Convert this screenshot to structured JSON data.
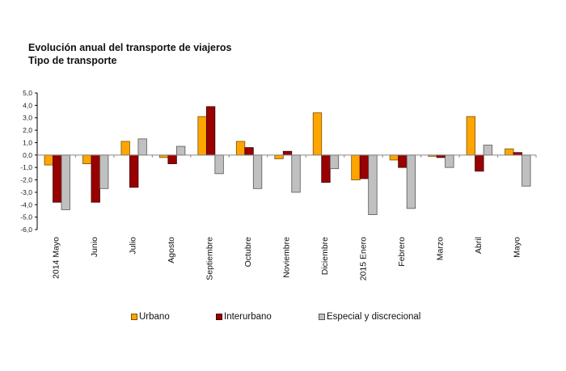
{
  "chart_data": {
    "type": "bar",
    "title": "Evolución anual del transporte de viajeros",
    "subtitle": "Tipo de transporte",
    "xlabel": "",
    "ylabel": "",
    "ylim": [
      -6.0,
      5.0
    ],
    "yticks": [
      "5,0",
      "4,0",
      "3,0",
      "2,0",
      "1,0",
      "0,0",
      "-1,0",
      "-2,0",
      "-3,0",
      "-4,0",
      "-5,0",
      "-6,0"
    ],
    "ytick_values": [
      5,
      4,
      3,
      2,
      1,
      0,
      -1,
      -2,
      -3,
      -4,
      -5,
      -6
    ],
    "grid": false,
    "legend_position": "bottom",
    "categories": [
      "2014 Mayo",
      "Junio",
      "Julio",
      "Agosto",
      "Septiembre",
      "Octubre",
      "Noviembre",
      "Diciembre",
      "2015  Enero",
      "Febrero",
      "Marzo",
      "Abril",
      "Mayo"
    ],
    "series": [
      {
        "name": "Urbano",
        "color": "#FFA500",
        "values": [
          -0.8,
          -0.7,
          1.1,
          -0.2,
          3.1,
          1.1,
          -0.3,
          3.4,
          -2.0,
          -0.4,
          -0.1,
          3.1,
          0.5
        ]
      },
      {
        "name": "Interurbano",
        "color": "#990000",
        "values": [
          -3.8,
          -3.8,
          -2.6,
          -0.7,
          3.9,
          0.6,
          0.3,
          -2.2,
          -1.9,
          -1.0,
          -0.2,
          -1.3,
          0.2
        ]
      },
      {
        "name": "Especial y discrecional",
        "color": "#C0C0C0",
        "values": [
          -4.4,
          -2.7,
          1.3,
          0.7,
          -1.5,
          -2.7,
          -3.0,
          -1.1,
          -4.8,
          -4.3,
          -1.0,
          0.8,
          -2.5
        ]
      }
    ]
  }
}
